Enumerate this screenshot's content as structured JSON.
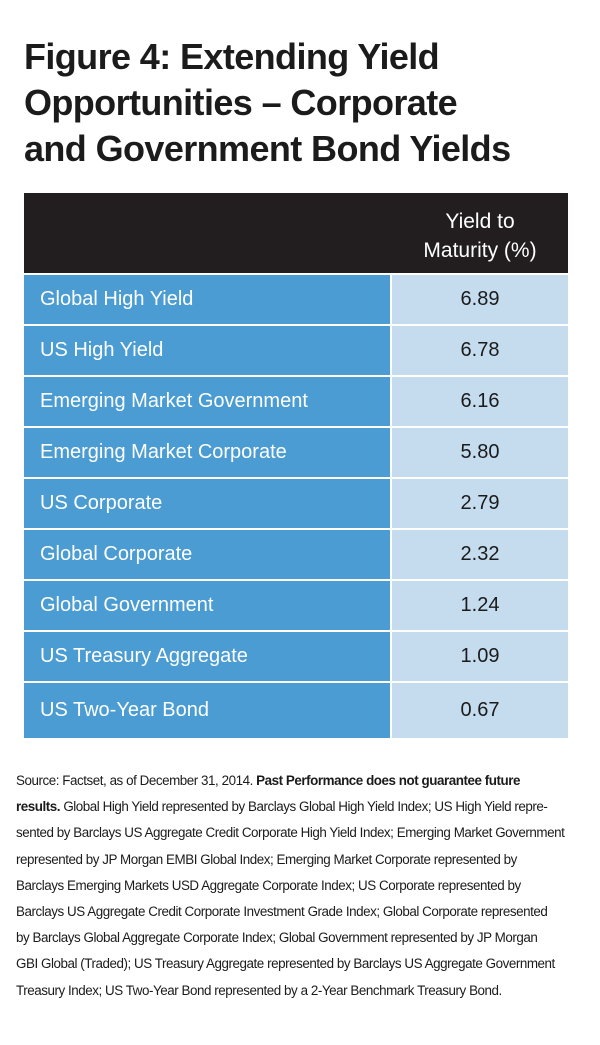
{
  "chart_data": {
    "type": "table",
    "title": "Figure 4: Extending Yield Opportunities – Corporate and Government Bond Yields",
    "title_lines": [
      "Figure 4: Extending Yield",
      "Opportunities – Corporate",
      "and Government Bond Yields"
    ],
    "column_header_lines": [
      "Yield to",
      "Maturity (%)"
    ],
    "column_header": "Yield to Maturity (%)",
    "categories": [
      "Global High Yield",
      "US High Yield",
      "Emerging Market Government",
      "Emerging Market Corporate",
      "US Corporate",
      "Global Corporate",
      "Global Government",
      "US Treasury Aggregate",
      "US Two-Year Bond"
    ],
    "values": [
      6.89,
      6.78,
      6.16,
      5.8,
      2.79,
      2.32,
      1.24,
      1.09,
      0.67
    ],
    "value_labels": [
      "6.89",
      "6.78",
      "6.16",
      "5.80",
      "2.79",
      "2.32",
      "1.24",
      "1.09",
      "0.67"
    ]
  },
  "footnote": {
    "line1_pre": "Source: Factset, as of December 31, 2014. ",
    "line1_bold": "Past Performance does not guarantee future",
    "line2_bold": "results.",
    "line2_rest": " Global High Yield represented by Barclays Global High Yield Index; US High Yield repre-",
    "lines": [
      "sented by Barclays US Aggregate Credit Corporate High Yield Index; Emerging Market Government",
      "represented by JP Morgan EMBI Global Index; Emerging Market Corporate represented by",
      "Barclays Emerging Markets USD Aggregate Corporate Index; US Corporate represented by",
      "Barclays US Aggregate Credit Corporate Investment Grade Index; Global Corporate represented",
      "by Barclays Global Aggregate Corporate Index; Global Government represented by JP Morgan",
      "GBI Global (Traded); US Treasury Aggregate represented by Barclays US Aggregate Government",
      "Treasury Index; US Two-Year Bond represented by a 2-Year Benchmark Treasury Bond."
    ]
  },
  "colors": {
    "header_bg": "#221e1f",
    "label_bg": "#4a9cd2",
    "value_bg": "#c5dcef",
    "text_dark": "#1b1b1b"
  }
}
